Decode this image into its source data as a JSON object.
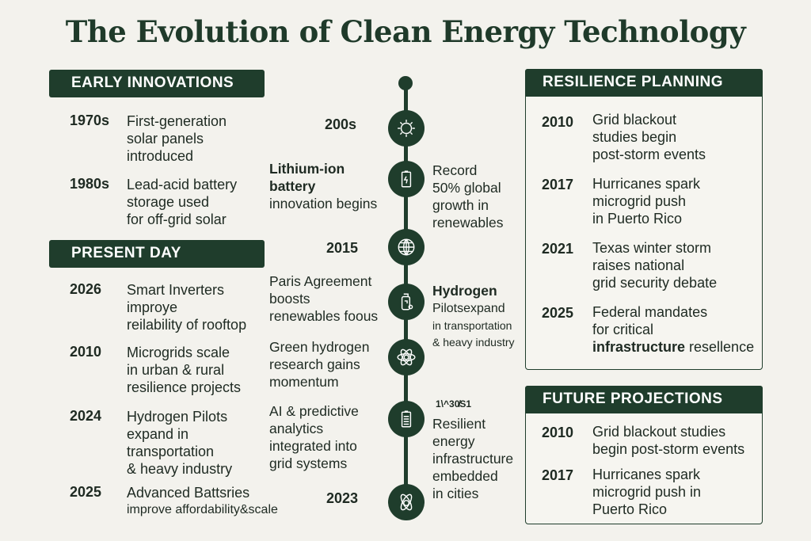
{
  "title": "The Evolution of Clean Energy Technology",
  "early": {
    "header": "EARLY INNOVATIONS",
    "items": [
      {
        "year": "1970s",
        "text": "First-generation\nsolar panels\nintroduced"
      },
      {
        "year": "1980s",
        "text": "Lead-acid battery\nstorage used\nfor off-grid solar"
      }
    ]
  },
  "present": {
    "header": "PRESENT DAY",
    "items": [
      {
        "year": "2026",
        "text": "Smart Inverters\nimproye\nreilability  of rooftop"
      },
      {
        "year": "2010",
        "text": "Microgrids scale\nin urban & rural\nresilience projects"
      },
      {
        "year": "2024",
        "text": "Hydrogen Pilots\nexpand in\ntransportation\n& heavy industry"
      },
      {
        "year": "2025",
        "text": "Advanced Battsries",
        "text2": "improve affordability&scale"
      }
    ]
  },
  "timeline": {
    "left": [
      {
        "label": "200s"
      },
      {
        "title": "Lithium-ion\nbattery",
        "text": "innovation begins"
      },
      {
        "label": "2015"
      },
      {
        "text": "Paris Agreement\nboosts\nrenewables foous"
      },
      {
        "text": "Green hydrogen\nresearch gains\nmomentum"
      },
      {
        "text": "AI & predictive\nanalytics\nintegrated into\ngrid systems"
      },
      {
        "label": "2023"
      }
    ],
    "right": [
      {
        "text": "Record\n50% global\ngrowth in\nrenewables"
      },
      {
        "title": "Hydrogen",
        "text": "Pilotsexpand",
        "small": "in transportation\n& heavy industry"
      },
      {
        "label": "1\\^30̸S1",
        "text": "Resilient\nenergy\ninfrastructure\nembedded\nin cities"
      }
    ],
    "icons": [
      "sun-icon",
      "battery-icon",
      "globe-icon",
      "hydrogen-tank-icon",
      "atom-icon",
      "clipboard-icon",
      "atom-icon"
    ]
  },
  "resilience": {
    "header": "RESILIENCE PLANNING",
    "items": [
      {
        "year": "2010",
        "text": "Grid blackout\nstudies begin\npost-storm events"
      },
      {
        "year": "2017",
        "text": "Hurricanes spark\nmicrogrid push\nin Puerto Rico"
      },
      {
        "year": "2021",
        "text": "Texas winter storm\nraises national\ngrid security debate"
      },
      {
        "year": "2025",
        "text": "Federal mandates\nfor critical",
        "text2": "infrastructure",
        "text3": " resellence"
      }
    ]
  },
  "future": {
    "header": "FUTURE PROJECTIONS",
    "items": [
      {
        "year": "2010",
        "text": "Grid blackout studies\nbegin post-storm events"
      },
      {
        "year": "2017",
        "text": "Hurricanes spark\nmicrogrid push in\nPuerto Rico"
      }
    ]
  },
  "colors": {
    "accent": "#1f3d2c",
    "background": "#f3f2ed"
  }
}
